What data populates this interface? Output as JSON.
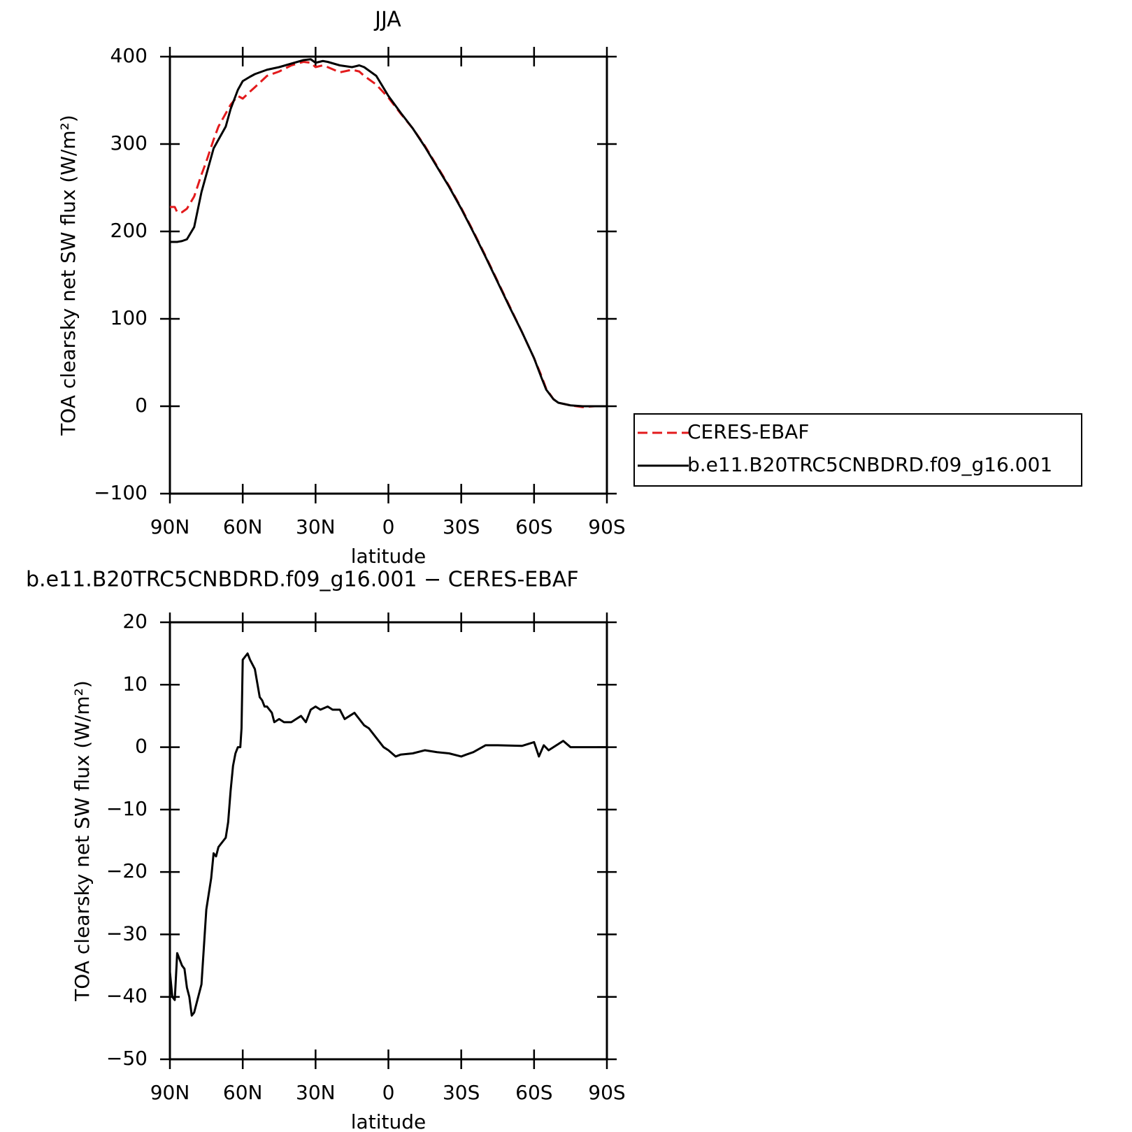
{
  "chart_data": [
    {
      "type": "line",
      "title": "JJA",
      "xlabel": "latitude",
      "ylabel": "TOA clearsky net SW flux (W/m²)",
      "x": [
        90,
        88,
        87,
        85,
        83,
        80,
        77,
        75,
        72,
        70,
        67,
        65,
        62,
        60,
        57,
        55,
        50,
        45,
        40,
        35,
        32,
        30,
        27,
        25,
        20,
        15,
        12,
        10,
        5,
        0,
        -5,
        -10,
        -15,
        -20,
        -25,
        -30,
        -35,
        -40,
        -45,
        -50,
        -55,
        -60,
        -63,
        -65,
        -68,
        -70,
        -75,
        -80,
        -85,
        -90
      ],
      "series": [
        {
          "name": "CERES-EBAF",
          "color": "#e31a1c",
          "dashed": true,
          "values": [
            228,
            228,
            222,
            222,
            226,
            240,
            265,
            280,
            305,
            320,
            335,
            345,
            355,
            352,
            360,
            365,
            378,
            383,
            390,
            394,
            393,
            388,
            390,
            388,
            382,
            385,
            383,
            378,
            368,
            353,
            335,
            318,
            298,
            275,
            252,
            227,
            200,
            172,
            143,
            114,
            85,
            55,
            35,
            20,
            8,
            4,
            1,
            -1,
            0,
            0
          ]
        },
        {
          "name": "b.e11.B20TRC5CNBDRD.f09_g16.001",
          "color": "#000000",
          "dashed": false,
          "values": [
            188,
            188,
            188,
            189,
            191,
            205,
            245,
            265,
            295,
            305,
            320,
            340,
            362,
            372,
            377,
            380,
            385,
            388,
            392,
            396,
            397,
            393,
            395,
            394,
            390,
            388,
            390,
            388,
            378,
            355,
            336,
            318,
            297,
            274,
            251,
            226,
            199,
            171,
            142,
            113,
            85,
            55,
            33,
            19,
            8,
            4,
            1,
            0,
            0,
            0
          ]
        }
      ],
      "xlim": [
        90,
        -90
      ],
      "xticks": [
        {
          "value": 90,
          "label": "90N"
        },
        {
          "value": 60,
          "label": "60N"
        },
        {
          "value": 30,
          "label": "30N"
        },
        0,
        {
          "value": -30,
          "label": "30S"
        },
        {
          "value": -60,
          "label": "60S"
        },
        {
          "value": -90,
          "label": "90S"
        }
      ],
      "ylim": [
        -100,
        400
      ],
      "yticks": [
        {
          "value": -100,
          "label": "−100"
        },
        0,
        100,
        200,
        300,
        400
      ],
      "legend": "right"
    },
    {
      "type": "line",
      "title": "b.e11.B20TRC5CNBDRD.f09_g16.001 − CERES-EBAF",
      "xlabel": "latitude",
      "ylabel": "TOA clearsky net SW flux (W/m²)",
      "x": [
        90,
        89,
        88,
        87,
        85,
        84,
        83,
        82,
        81,
        80,
        77,
        75,
        73,
        72,
        71,
        70,
        68,
        67,
        66,
        65,
        64,
        63,
        62,
        61,
        60.5,
        60,
        58,
        57,
        55,
        53,
        52,
        51,
        50,
        48,
        47,
        45,
        43,
        40,
        38,
        36,
        34,
        32,
        30,
        28,
        25,
        23,
        20,
        18,
        16,
        14,
        12,
        10,
        8,
        5,
        2,
        0,
        -3,
        -5,
        -10,
        -15,
        -20,
        -25,
        -30,
        -32,
        -35,
        -40,
        -45,
        -55,
        -60,
        -62,
        -64,
        -66,
        -70,
        -72,
        -75,
        -90
      ],
      "values": [
        -36,
        -40,
        -40.5,
        -33,
        -35,
        -35.5,
        -38.5,
        -40,
        -43,
        -42.5,
        -38,
        -26,
        -21,
        -17,
        -17.5,
        -16,
        -15,
        -14.5,
        -12,
        -7,
        -3,
        -1,
        0,
        0,
        3,
        14,
        15,
        14,
        12.5,
        8,
        7.5,
        6.5,
        6.5,
        5.5,
        4,
        4.5,
        4,
        4,
        4.5,
        5,
        4,
        6,
        6.5,
        6,
        6.5,
        6,
        6,
        4.5,
        5,
        5.5,
        4.5,
        3.5,
        3,
        1.5,
        0,
        -0.5,
        -1.5,
        -1.2,
        -1,
        -0.5,
        -0.8,
        -1,
        -1.5,
        -1.2,
        -0.8,
        0.3,
        0.3,
        0.2,
        0.8,
        -1.5,
        0.3,
        -0.5,
        0.5,
        1,
        0,
        0
      ],
      "color": "#000000",
      "xlim": [
        90,
        -90
      ],
      "xticks": [
        {
          "value": 90,
          "label": "90N"
        },
        {
          "value": 60,
          "label": "60N"
        },
        {
          "value": 30,
          "label": "30N"
        },
        0,
        {
          "value": -30,
          "label": "30S"
        },
        {
          "value": -60,
          "label": "60S"
        },
        {
          "value": -90,
          "label": "90S"
        }
      ],
      "ylim": [
        -50,
        20
      ],
      "yticks": [
        {
          "value": -50,
          "label": "−50"
        },
        {
          "value": -40,
          "label": "−40"
        },
        {
          "value": -30,
          "label": "−30"
        },
        {
          "value": -20,
          "label": "−20"
        },
        {
          "value": -10,
          "label": "−10"
        },
        0,
        10,
        20
      ]
    }
  ]
}
